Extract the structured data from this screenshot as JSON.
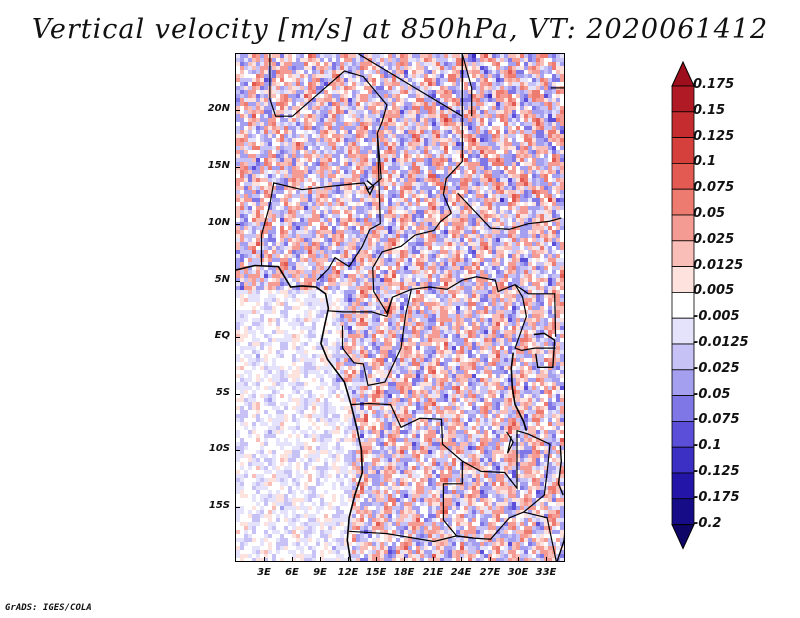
{
  "title": "Vertical velocity [m/s] at 850hPa, VT: 2020061412",
  "footer": "GrADS: IGES/COLA",
  "map": {
    "projection": "lat-lon",
    "lon_range": [
      0,
      35
    ],
    "lat_range": [
      -20,
      25
    ],
    "lat_labels": [
      "20N",
      "15N",
      "10N",
      "5N",
      "EQ",
      "5S",
      "10S",
      "15S"
    ],
    "lon_labels": [
      "3E",
      "6E",
      "9E",
      "12E",
      "15E",
      "18E",
      "21E",
      "24E",
      "27E",
      "30E",
      "33E"
    ],
    "field": "vertical velocity",
    "palette": "blue-white-red diverging"
  },
  "colorbar": {
    "levels": [
      "0.175",
      "0.15",
      "0.125",
      "0.1",
      "0.075",
      "0.05",
      "0.025",
      "0.0125",
      "0.005",
      "-0.005",
      "-0.0125",
      "-0.025",
      "-0.05",
      "-0.075",
      "-0.1",
      "-0.125",
      "-0.175",
      "-0.2"
    ],
    "colors": [
      "#9e0f1d",
      "#b01a24",
      "#c42c2f",
      "#d6403c",
      "#e25a52",
      "#ee7b70",
      "#f49c93",
      "#f9beb7",
      "#fde2de",
      "#ffffff",
      "#e4e3fb",
      "#c6c2f5",
      "#a59ff0",
      "#8077e6",
      "#5b4fd9",
      "#3b2fc4",
      "#2315a7",
      "#170c87",
      "#0e0566"
    ]
  }
}
